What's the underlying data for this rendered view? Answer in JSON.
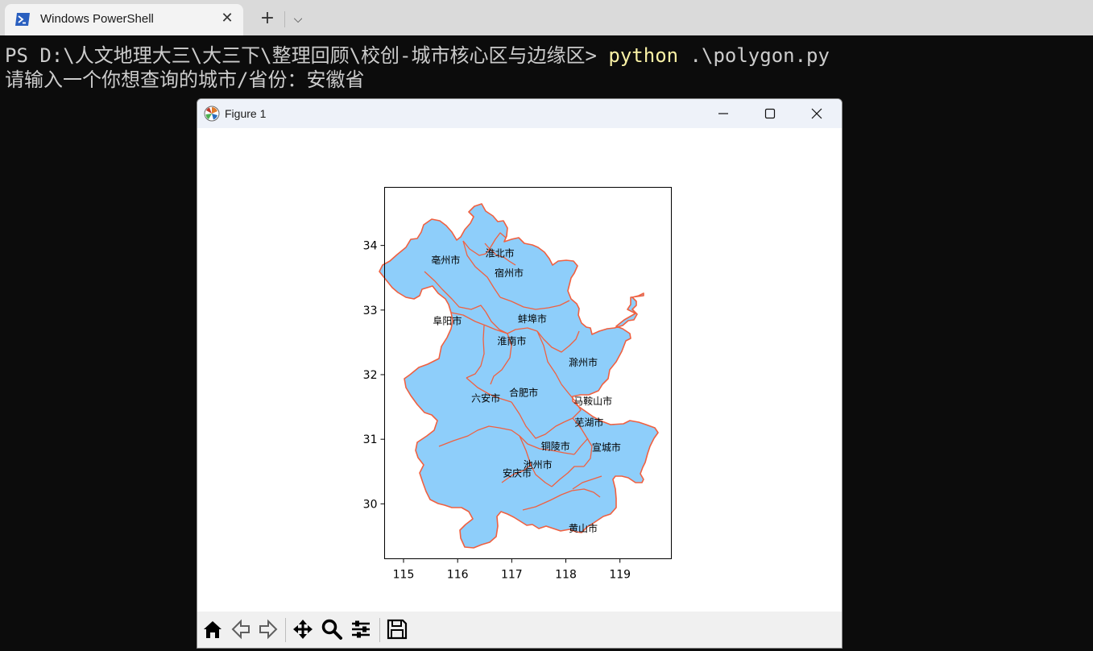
{
  "tab": {
    "title": "Windows PowerShell",
    "icon": "powershell-icon",
    "close_glyph": "✕",
    "new_tab_glyph": "+",
    "dropdown_glyph": "⌵"
  },
  "terminal": {
    "prompt": "PS D:\\人文地理大三\\大三下\\整理回顾\\校创-城市核心区与边缘区> ",
    "command": "python",
    "args": " .\\polygon.py",
    "output_line": "请输入一个你想查询的城市/省份：安徽省",
    "command_color": "#f9f1a5"
  },
  "figure_window": {
    "title": "Figure 1",
    "icon": "matplotlib-icon"
  },
  "toolbar": {
    "items": [
      "home-icon",
      "back-arrow-icon",
      "forward-arrow-icon",
      "pan-icon",
      "zoom-icon",
      "configure-subplots-icon",
      "save-icon"
    ]
  },
  "chart_data": {
    "type": "map",
    "x_ticks": [
      "115",
      "116",
      "117",
      "118",
      "119"
    ],
    "y_ticks": [
      "30",
      "31",
      "32",
      "33",
      "34"
    ],
    "xlim": [
      114.65,
      119.95
    ],
    "ylim": [
      29.15,
      34.9
    ],
    "fill_color": "#8ecefa",
    "edge_color": "#f06040",
    "cities": [
      {
        "name": "亳州市",
        "lon": 115.78,
        "lat": 33.77
      },
      {
        "name": "淮北市",
        "lon": 116.78,
        "lat": 33.88
      },
      {
        "name": "宿州市",
        "lon": 116.95,
        "lat": 33.57
      },
      {
        "name": "阜阳市",
        "lon": 115.81,
        "lat": 32.83
      },
      {
        "name": "蚌埠市",
        "lon": 117.38,
        "lat": 32.86
      },
      {
        "name": "淮南市",
        "lon": 117.0,
        "lat": 32.52
      },
      {
        "name": "滁州市",
        "lon": 118.32,
        "lat": 32.19
      },
      {
        "name": "六安市",
        "lon": 116.52,
        "lat": 31.63
      },
      {
        "name": "合肥市",
        "lon": 117.22,
        "lat": 31.72
      },
      {
        "name": "马鞍山市",
        "lon": 118.5,
        "lat": 31.59
      },
      {
        "name": "芜湖市",
        "lon": 118.43,
        "lat": 31.26
      },
      {
        "name": "宣城市",
        "lon": 118.75,
        "lat": 30.87
      },
      {
        "name": "铜陵市",
        "lon": 117.81,
        "lat": 30.89
      },
      {
        "name": "池州市",
        "lon": 117.48,
        "lat": 30.6
      },
      {
        "name": "安庆市",
        "lon": 117.1,
        "lat": 30.47
      },
      {
        "name": "黄山市",
        "lon": 118.32,
        "lat": 29.62
      }
    ]
  }
}
